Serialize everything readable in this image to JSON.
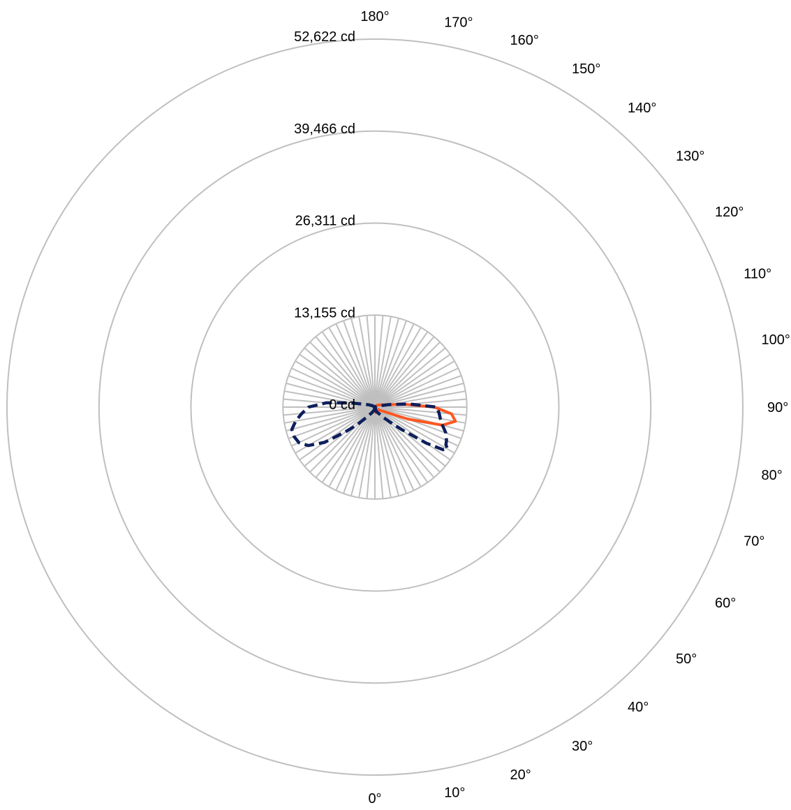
{
  "chart_data": {
    "type": "polar-line",
    "title": "",
    "unit": "cd",
    "radial_ticks": [
      {
        "value": 0,
        "label": "0 cd"
      },
      {
        "value": 13155,
        "label": "13,155 cd"
      },
      {
        "value": 26311,
        "label": "26,311 cd"
      },
      {
        "value": 39466,
        "label": "39,466 cd"
      },
      {
        "value": 52622,
        "label": "52,622 cd"
      }
    ],
    "rmax": 52622,
    "angle_labels": [
      "0°",
      "10°",
      "20°",
      "30°",
      "40°",
      "50°",
      "60°",
      "70°",
      "80°",
      "90°",
      "100°",
      "110°",
      "120°",
      "130°",
      "140°",
      "150°",
      "160°",
      "170°",
      "180°"
    ],
    "angle_range_deg": [
      0,
      180
    ],
    "spoke_step_deg": 5,
    "grid": true,
    "colors": {
      "grid": "#bfbfbf",
      "series_solid": "#ff5722",
      "series_dashed": "#0d1f5c"
    },
    "series": [
      {
        "style": "solid",
        "color": "#ff5722",
        "side": "right",
        "points": [
          [
            0,
            0
          ],
          [
            10,
            800
          ],
          [
            20,
            500
          ],
          [
            30,
            400
          ],
          [
            40,
            400
          ],
          [
            50,
            500
          ],
          [
            60,
            1000
          ],
          [
            70,
            5000
          ],
          [
            75,
            10000
          ],
          [
            80,
            11700
          ],
          [
            85,
            11000
          ],
          [
            90,
            8500
          ],
          [
            95,
            4500
          ],
          [
            100,
            2000
          ],
          [
            110,
            900
          ],
          [
            120,
            600
          ],
          [
            140,
            300
          ],
          [
            180,
            0
          ]
        ]
      },
      {
        "style": "dashed",
        "color": "#0d1f5c",
        "side": "right",
        "points": [
          [
            0,
            0
          ],
          [
            15,
            600
          ],
          [
            30,
            1000
          ],
          [
            40,
            2000
          ],
          [
            45,
            3000
          ],
          [
            50,
            5000
          ],
          [
            55,
            9000
          ],
          [
            58,
            11500
          ],
          [
            60,
            12000
          ],
          [
            62,
            11500
          ],
          [
            65,
            11300
          ],
          [
            70,
            10800
          ],
          [
            75,
            10000
          ],
          [
            80,
            9500
          ],
          [
            85,
            9200
          ],
          [
            90,
            8800
          ],
          [
            95,
            5000
          ],
          [
            100,
            2000
          ],
          [
            110,
            500
          ],
          [
            180,
            0
          ]
        ]
      },
      {
        "style": "dashed",
        "color": "#0d1f5c",
        "side": "left",
        "points": [
          [
            0,
            0
          ],
          [
            15,
            500
          ],
          [
            30,
            1000
          ],
          [
            40,
            2000
          ],
          [
            45,
            3500
          ],
          [
            50,
            5500
          ],
          [
            55,
            8800
          ],
          [
            60,
            11000
          ],
          [
            65,
            12000
          ],
          [
            70,
            12300
          ],
          [
            75,
            12300
          ],
          [
            80,
            11500
          ],
          [
            85,
            10500
          ],
          [
            90,
            9500
          ],
          [
            95,
            7000
          ],
          [
            100,
            3500
          ],
          [
            110,
            1000
          ],
          [
            120,
            400
          ],
          [
            180,
            0
          ]
        ]
      }
    ]
  }
}
